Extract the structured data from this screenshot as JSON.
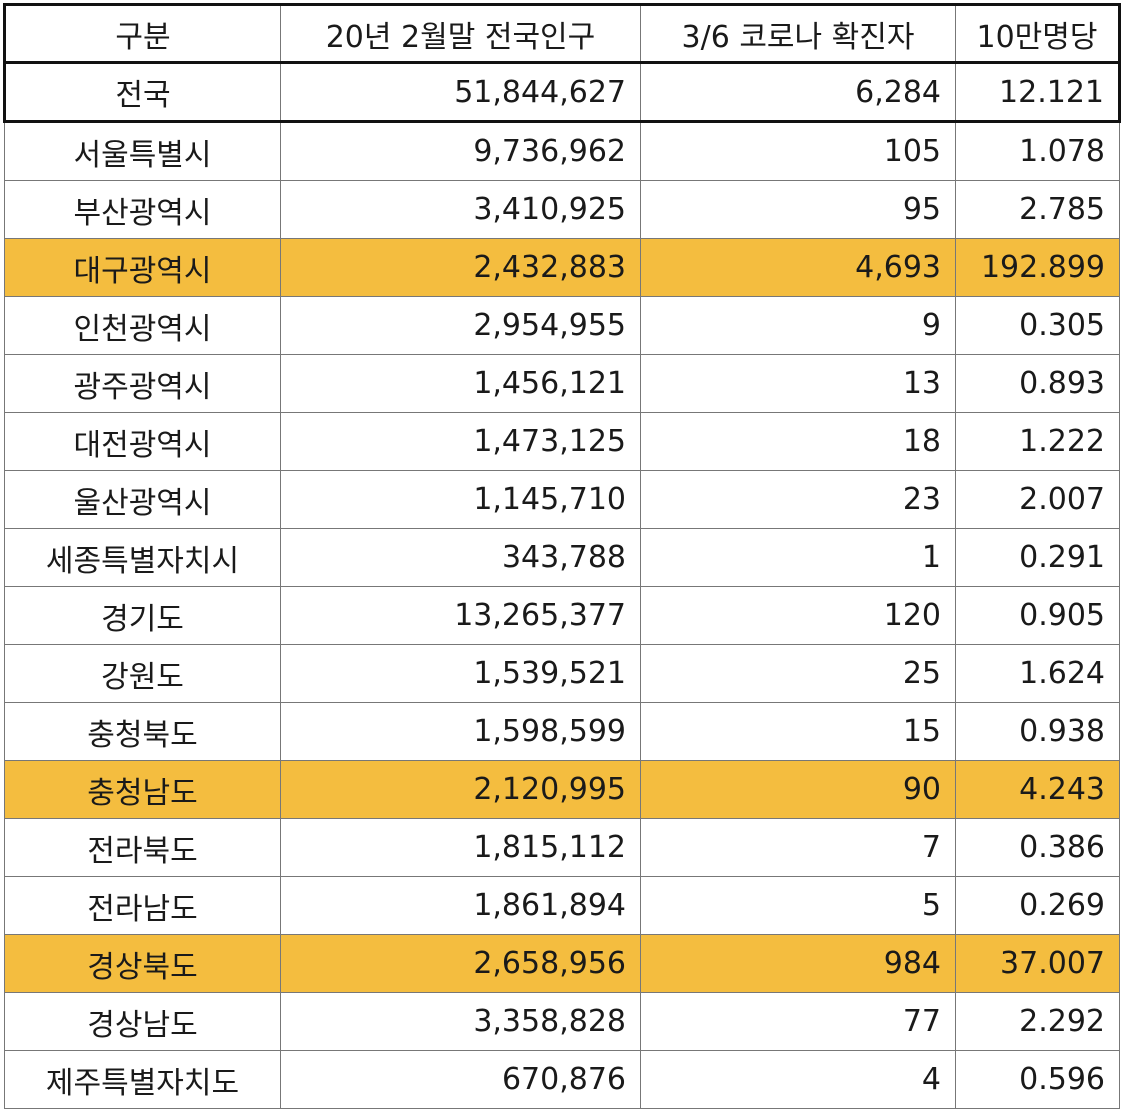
{
  "table": {
    "headers": [
      "구분",
      "20년 2월말 전국인구",
      "3/6 코로나 확진자",
      "10만명당"
    ],
    "highlight_color": "#f4bd3f",
    "rows": [
      {
        "name": "전국",
        "population": "51,844,627",
        "cases": "6,284",
        "per100k": "12.121",
        "highlight": false,
        "total": true
      },
      {
        "name": "서울특별시",
        "population": "9,736,962",
        "cases": "105",
        "per100k": "1.078",
        "highlight": false
      },
      {
        "name": "부산광역시",
        "population": "3,410,925",
        "cases": "95",
        "per100k": "2.785",
        "highlight": false
      },
      {
        "name": "대구광역시",
        "population": "2,432,883",
        "cases": "4,693",
        "per100k": "192.899",
        "highlight": true
      },
      {
        "name": "인천광역시",
        "population": "2,954,955",
        "cases": "9",
        "per100k": "0.305",
        "highlight": false
      },
      {
        "name": "광주광역시",
        "population": "1,456,121",
        "cases": "13",
        "per100k": "0.893",
        "highlight": false
      },
      {
        "name": "대전광역시",
        "population": "1,473,125",
        "cases": "18",
        "per100k": "1.222",
        "highlight": false
      },
      {
        "name": "울산광역시",
        "population": "1,145,710",
        "cases": "23",
        "per100k": "2.007",
        "highlight": false
      },
      {
        "name": "세종특별자치시",
        "population": "343,788",
        "cases": "1",
        "per100k": "0.291",
        "highlight": false
      },
      {
        "name": "경기도",
        "population": "13,265,377",
        "cases": "120",
        "per100k": "0.905",
        "highlight": false
      },
      {
        "name": "강원도",
        "population": "1,539,521",
        "cases": "25",
        "per100k": "1.624",
        "highlight": false
      },
      {
        "name": "충청북도",
        "population": "1,598,599",
        "cases": "15",
        "per100k": "0.938",
        "highlight": false
      },
      {
        "name": "충청남도",
        "population": "2,120,995",
        "cases": "90",
        "per100k": "4.243",
        "highlight": true
      },
      {
        "name": "전라북도",
        "population": "1,815,112",
        "cases": "7",
        "per100k": "0.386",
        "highlight": false
      },
      {
        "name": "전라남도",
        "population": "1,861,894",
        "cases": "5",
        "per100k": "0.269",
        "highlight": false
      },
      {
        "name": "경상북도",
        "population": "2,658,956",
        "cases": "984",
        "per100k": "37.007",
        "highlight": true
      },
      {
        "name": "경상남도",
        "population": "3,358,828",
        "cases": "77",
        "per100k": "2.292",
        "highlight": false
      },
      {
        "name": "제주특별자치도",
        "population": "670,876",
        "cases": "4",
        "per100k": "0.596",
        "highlight": false
      }
    ]
  }
}
